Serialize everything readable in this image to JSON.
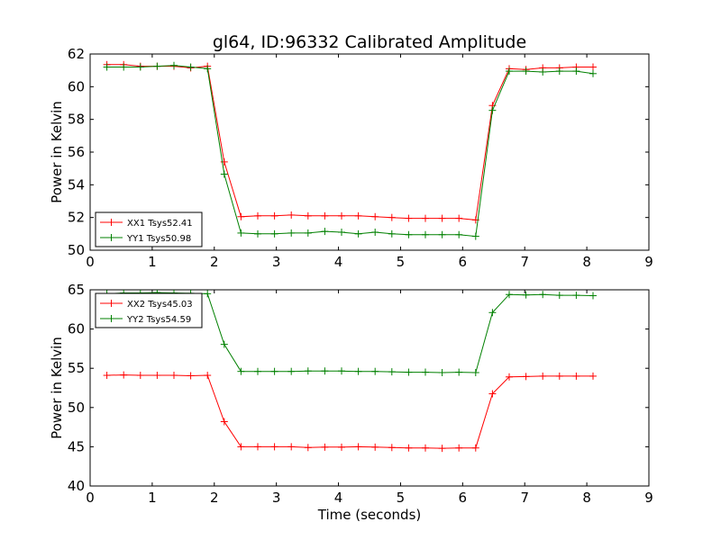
{
  "title": "gl64, ID:96332 Calibrated Amplitude",
  "chart_data": [
    {
      "type": "line",
      "ylabel": "Power in Kelvin",
      "xlabel": "",
      "xlim": [
        0,
        9
      ],
      "ylim": [
        50,
        62
      ],
      "x_ticks": [
        "0",
        "1",
        "2",
        "3",
        "4",
        "5",
        "6",
        "7",
        "8",
        "9"
      ],
      "y_ticks": [
        "50",
        "52",
        "54",
        "56",
        "58",
        "60",
        "62"
      ],
      "grid": false,
      "legend_position": "lower-left",
      "x": [
        0.27,
        0.54,
        0.81,
        1.08,
        1.35,
        1.62,
        1.89,
        2.16,
        2.43,
        2.7,
        2.97,
        3.24,
        3.51,
        3.78,
        4.05,
        4.32,
        4.59,
        4.86,
        5.13,
        5.4,
        5.67,
        5.94,
        6.21,
        6.48,
        6.75,
        7.02,
        7.29,
        7.56,
        7.83,
        8.1
      ],
      "series": [
        {
          "name": "XX1 Tsys52.41",
          "color": "#ff0000",
          "values": [
            61.35,
            61.35,
            61.25,
            61.25,
            61.25,
            61.15,
            61.25,
            55.4,
            52.05,
            52.1,
            52.1,
            52.15,
            52.1,
            52.1,
            52.1,
            52.1,
            52.05,
            52.0,
            51.95,
            51.95,
            51.95,
            51.95,
            51.85,
            58.85,
            61.1,
            61.05,
            61.15,
            61.15,
            61.2,
            61.2
          ]
        },
        {
          "name": "YY1 Tsys50.98",
          "color": "#008000",
          "values": [
            61.2,
            61.2,
            61.2,
            61.25,
            61.3,
            61.2,
            61.1,
            54.65,
            51.05,
            51.0,
            51.0,
            51.05,
            51.05,
            51.15,
            51.1,
            51.0,
            51.1,
            51.0,
            50.95,
            50.95,
            50.95,
            50.95,
            50.85,
            58.55,
            60.95,
            60.95,
            60.9,
            60.95,
            60.95,
            60.8
          ]
        }
      ]
    },
    {
      "type": "line",
      "ylabel": "Power in Kelvin",
      "xlabel": "Time (seconds)",
      "xlim": [
        0,
        9
      ],
      "ylim": [
        40,
        65
      ],
      "x_ticks": [
        "0",
        "1",
        "2",
        "3",
        "4",
        "5",
        "6",
        "7",
        "8",
        "9"
      ],
      "y_ticks": [
        "40",
        "45",
        "50",
        "55",
        "60",
        "65"
      ],
      "grid": false,
      "legend_position": "upper-left",
      "x": [
        0.27,
        0.54,
        0.81,
        1.08,
        1.35,
        1.62,
        1.89,
        2.16,
        2.43,
        2.7,
        2.97,
        3.24,
        3.51,
        3.78,
        4.05,
        4.32,
        4.59,
        4.86,
        5.13,
        5.4,
        5.67,
        5.94,
        6.21,
        6.48,
        6.75,
        7.02,
        7.29,
        7.56,
        7.83,
        8.1
      ],
      "series": [
        {
          "name": "XX2 Tsys45.03",
          "color": "#ff0000",
          "values": [
            54.1,
            54.15,
            54.1,
            54.1,
            54.1,
            54.05,
            54.1,
            48.2,
            45.0,
            45.0,
            45.0,
            45.0,
            44.9,
            44.95,
            44.95,
            45.0,
            44.95,
            44.9,
            44.85,
            44.85,
            44.8,
            44.85,
            44.85,
            51.75,
            53.9,
            53.95,
            54.0,
            54.0,
            54.0,
            54.0
          ]
        },
        {
          "name": "YY2 Tsys54.59",
          "color": "#008000",
          "values": [
            64.5,
            64.6,
            64.6,
            64.65,
            64.6,
            64.55,
            64.5,
            58.05,
            54.6,
            54.6,
            54.6,
            54.6,
            54.65,
            54.65,
            54.65,
            54.6,
            54.6,
            54.55,
            54.5,
            54.5,
            54.45,
            54.5,
            54.45,
            62.1,
            64.4,
            64.35,
            64.4,
            64.3,
            64.3,
            64.25
          ]
        }
      ]
    }
  ]
}
